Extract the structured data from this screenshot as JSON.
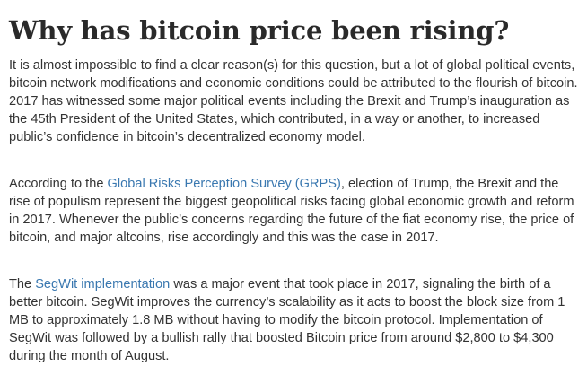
{
  "article": {
    "title": "Why has bitcoin price been rising?",
    "paragraphs": [
      {
        "text": "It is almost impossible to find a clear reason(s) for this question, but a lot of global political events, bitcoin network modifications and economic conditions could be attributed to the flourish of bitcoin. 2017 has witnessed some major political events including the Brexit and Trump’s inauguration as the 45th President of the United States, which contributed, in a way or another, to increased public’s confidence in bitcoin’s decentralized economy model."
      },
      {
        "before": "According to the ",
        "link": "Global Risks Perception Survey (GRPS)",
        "after": ", election of Trump, the Brexit and the rise of populism represent the biggest geopolitical risks facing global economic growth and reform in 2017. Whenever the public’s concerns regarding the future of the fiat economy rise, the price of bitcoin, and major altcoins, rise accordingly and this was the case in 2017."
      },
      {
        "before": "The ",
        "link": "SegWit implementation",
        "after": " was a major event that took place in 2017, signaling the birth of a better bitcoin. SegWit improves the currency’s scalability as it acts to boost the block size from 1 MB to approximately 1.8 MB without having to modify the bitcoin protocol. Implementation of SegWit was followed by a bullish rally that boosted Bitcoin price from around $2,800 to $4,300 during the month of August."
      }
    ]
  },
  "colors": {
    "link": "#3a78b0",
    "text": "#333333",
    "title": "#2a2a2a"
  }
}
